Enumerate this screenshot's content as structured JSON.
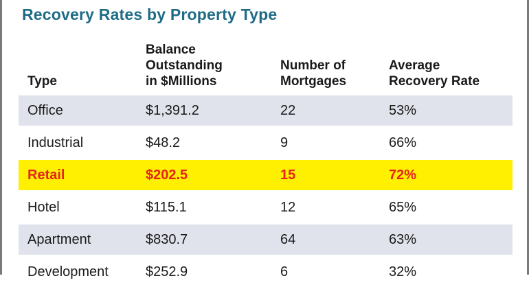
{
  "title": "Recovery Rates by Property Type",
  "colors": {
    "title": "#1f6b86",
    "shade": "#e1e3ec",
    "highlight_bg": "#ffef00",
    "highlight_text": "#e5241a",
    "border": "#7a7a7a"
  },
  "header": {
    "type": [
      "Type"
    ],
    "balance": [
      "Balance",
      "Outstanding",
      "in $Millions"
    ],
    "number": [
      "Number of",
      "Mortgages"
    ],
    "average": [
      "Average",
      "Recovery Rate"
    ]
  },
  "rows": [
    {
      "type": "Office",
      "balance": "$1,391.2",
      "number": "22",
      "average": "53%",
      "style": "shade"
    },
    {
      "type": "Industrial",
      "balance": "$48.2",
      "number": "9",
      "average": "66%",
      "style": "plain"
    },
    {
      "type": "Retail",
      "balance": "$202.5",
      "number": "15",
      "average": "72%",
      "style": "highlight"
    },
    {
      "type": "Hotel",
      "balance": "$115.1",
      "number": "12",
      "average": "65%",
      "style": "plain"
    },
    {
      "type": "Apartment",
      "balance": "$830.7",
      "number": "64",
      "average": "63%",
      "style": "shade"
    },
    {
      "type": "Development",
      "balance": "$252.9",
      "number": "6",
      "average": "32%",
      "style": "plain"
    }
  ]
}
